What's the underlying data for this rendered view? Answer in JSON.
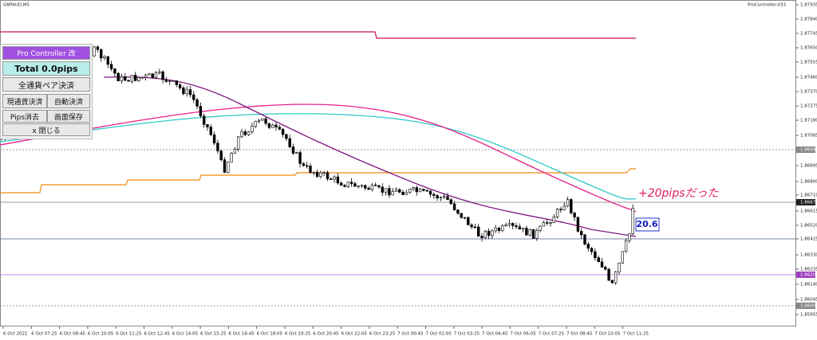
{
  "header": {
    "symbol": "GBPAUD,M5",
    "indicator": "ProController-V33"
  },
  "panel": {
    "title": "Pro Controller 改",
    "total": "Total   0.0pips",
    "close_all": "全通貨ペア決済",
    "close_current": "現通貨決済",
    "auto_close": "自動決済",
    "clear_pips": "Pips消去",
    "save_screen": "画面保存",
    "close": "x 閉じる"
  },
  "price_axis": [
    "1.87935",
    "1.87840",
    "1.87745",
    "1.87650",
    "1.87555",
    "1.87460",
    "1.87370",
    "1.87275",
    "1.87180",
    "1.87085",
    "1.86990",
    "1.86895",
    "1.86800",
    "1.86710",
    "1.86673",
    "1.86615",
    "1.86520",
    "1.86425",
    "1.86330",
    "1.86235",
    "1.86203",
    "1.86140",
    "1.86045",
    "1.86000",
    "1.85955"
  ],
  "time_axis": [
    "6 Oct 2021",
    "6 Oct 07:25",
    "6 Oct 08:45",
    "6 Oct 10:05",
    "6 Oct 11:25",
    "6 Oct 12:45",
    "6 Oct 14:05",
    "6 Oct 15:25",
    "6 Oct 16:45",
    "6 Oct 18:05",
    "6 Oct 19:25",
    "6 Oct 20:45",
    "6 Oct 22:05",
    "6 Oct 23:25",
    "7 Oct 00:45",
    "7 Oct 02:05",
    "7 Oct 03:25",
    "7 Oct 04:45",
    "7 Oct 06:05",
    "7 Oct 07:25",
    "7 Oct 08:45",
    "7 Oct 10:05",
    "7 Oct 11:25"
  ],
  "annotations": {
    "pips_box": "20.6",
    "note": "+20pipsだった"
  }
}
